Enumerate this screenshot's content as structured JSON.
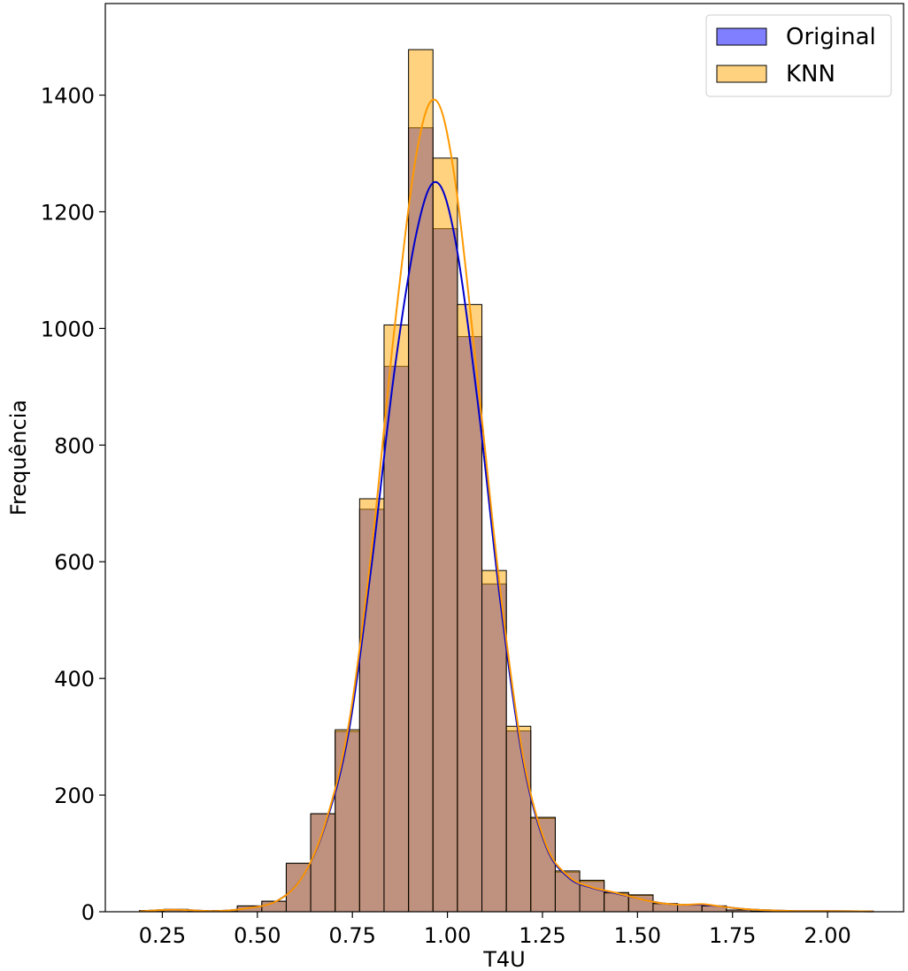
{
  "chart_data": {
    "type": "histogram",
    "title": "",
    "xlabel": "T4U",
    "ylabel": "Frequência",
    "xlim": [
      0.1,
      2.2
    ],
    "ylim": [
      0,
      1557
    ],
    "x_ticks": [
      0.25,
      0.5,
      0.75,
      1.0,
      1.25,
      1.5,
      1.75,
      2.0
    ],
    "x_tick_labels": [
      "0.25",
      "0.50",
      "0.75",
      "1.00",
      "1.25",
      "1.50",
      "1.75",
      "2.00"
    ],
    "y_ticks": [
      0,
      200,
      400,
      600,
      800,
      1000,
      1200,
      1400
    ],
    "y_tick_labels": [
      "0",
      "200",
      "400",
      "600",
      "800",
      "1000",
      "1200",
      "1400"
    ],
    "bin_edges": [
      0.19,
      0.2543,
      0.3187,
      0.383,
      0.4473,
      0.5117,
      0.576,
      0.6403,
      0.7047,
      0.769,
      0.8333,
      0.8977,
      0.962,
      1.0263,
      1.0907,
      1.155,
      1.2193,
      1.2837,
      1.348,
      1.4123,
      1.4767,
      1.541,
      1.6053,
      1.6697,
      1.734,
      1.7983,
      1.8627,
      1.927,
      1.9913,
      2.0557,
      2.12
    ],
    "grid": false,
    "legend_position": "top-right",
    "series": [
      {
        "name": "Original",
        "color": "#0000ff",
        "kde_color": "#0000cc",
        "counts": [
          2,
          4,
          1,
          2,
          10,
          18,
          83,
          168,
          309,
          690,
          935,
          1344,
          1171,
          986,
          562,
          310,
          160,
          68,
          52,
          32,
          28,
          14,
          12,
          10,
          3,
          1,
          1,
          1,
          0,
          1
        ],
        "kde": [
          [
            0.19,
            0.6
          ],
          [
            0.28,
            3.6
          ],
          [
            0.38,
            1.2
          ],
          [
            0.46,
            4.8
          ],
          [
            0.55,
            18
          ],
          [
            0.62,
            61
          ],
          [
            0.68,
            151
          ],
          [
            0.74,
            307
          ],
          [
            0.8,
            592
          ],
          [
            0.86,
            924
          ],
          [
            0.92,
            1168
          ],
          [
            0.97,
            1251
          ],
          [
            1.02,
            1154
          ],
          [
            1.08,
            872
          ],
          [
            1.14,
            528
          ],
          [
            1.2,
            255
          ],
          [
            1.26,
            111
          ],
          [
            1.32,
            58
          ],
          [
            1.38,
            41
          ],
          [
            1.44,
            32
          ],
          [
            1.5,
            23
          ],
          [
            1.56,
            15
          ],
          [
            1.62,
            12
          ],
          [
            1.67,
            12
          ],
          [
            1.72,
            9
          ],
          [
            1.78,
            4.8
          ],
          [
            1.85,
            2.4
          ],
          [
            1.92,
            1.2
          ],
          [
            2.0,
            1.2
          ],
          [
            2.12,
            0.6
          ]
        ]
      },
      {
        "name": "KNN",
        "color": "#ffa500",
        "kde_color": "#ff9900",
        "counts": [
          2,
          4,
          1,
          2,
          10,
          18,
          83,
          168,
          312,
          708,
          1006,
          1478,
          1292,
          1041,
          585,
          318,
          162,
          70,
          54,
          33,
          29,
          14,
          12,
          10,
          3,
          1,
          1,
          1,
          0,
          1
        ],
        "kde": [
          [
            0.19,
            0.6
          ],
          [
            0.28,
            3.6
          ],
          [
            0.38,
            1.2
          ],
          [
            0.46,
            4.8
          ],
          [
            0.55,
            18
          ],
          [
            0.62,
            61
          ],
          [
            0.68,
            154
          ],
          [
            0.74,
            319
          ],
          [
            0.8,
            617
          ],
          [
            0.86,
            996
          ],
          [
            0.92,
            1305
          ],
          [
            0.97,
            1391
          ],
          [
            1.02,
            1254
          ],
          [
            1.08,
            909
          ],
          [
            1.14,
            545
          ],
          [
            1.2,
            262
          ],
          [
            1.26,
            114
          ],
          [
            1.32,
            60
          ],
          [
            1.38,
            42
          ],
          [
            1.44,
            33
          ],
          [
            1.5,
            23
          ],
          [
            1.56,
            15
          ],
          [
            1.62,
            12
          ],
          [
            1.67,
            13
          ],
          [
            1.72,
            9
          ],
          [
            1.78,
            4.8
          ],
          [
            1.85,
            2.4
          ],
          [
            1.92,
            1.2
          ],
          [
            2.0,
            1.2
          ],
          [
            2.12,
            0.6
          ]
        ]
      }
    ]
  }
}
